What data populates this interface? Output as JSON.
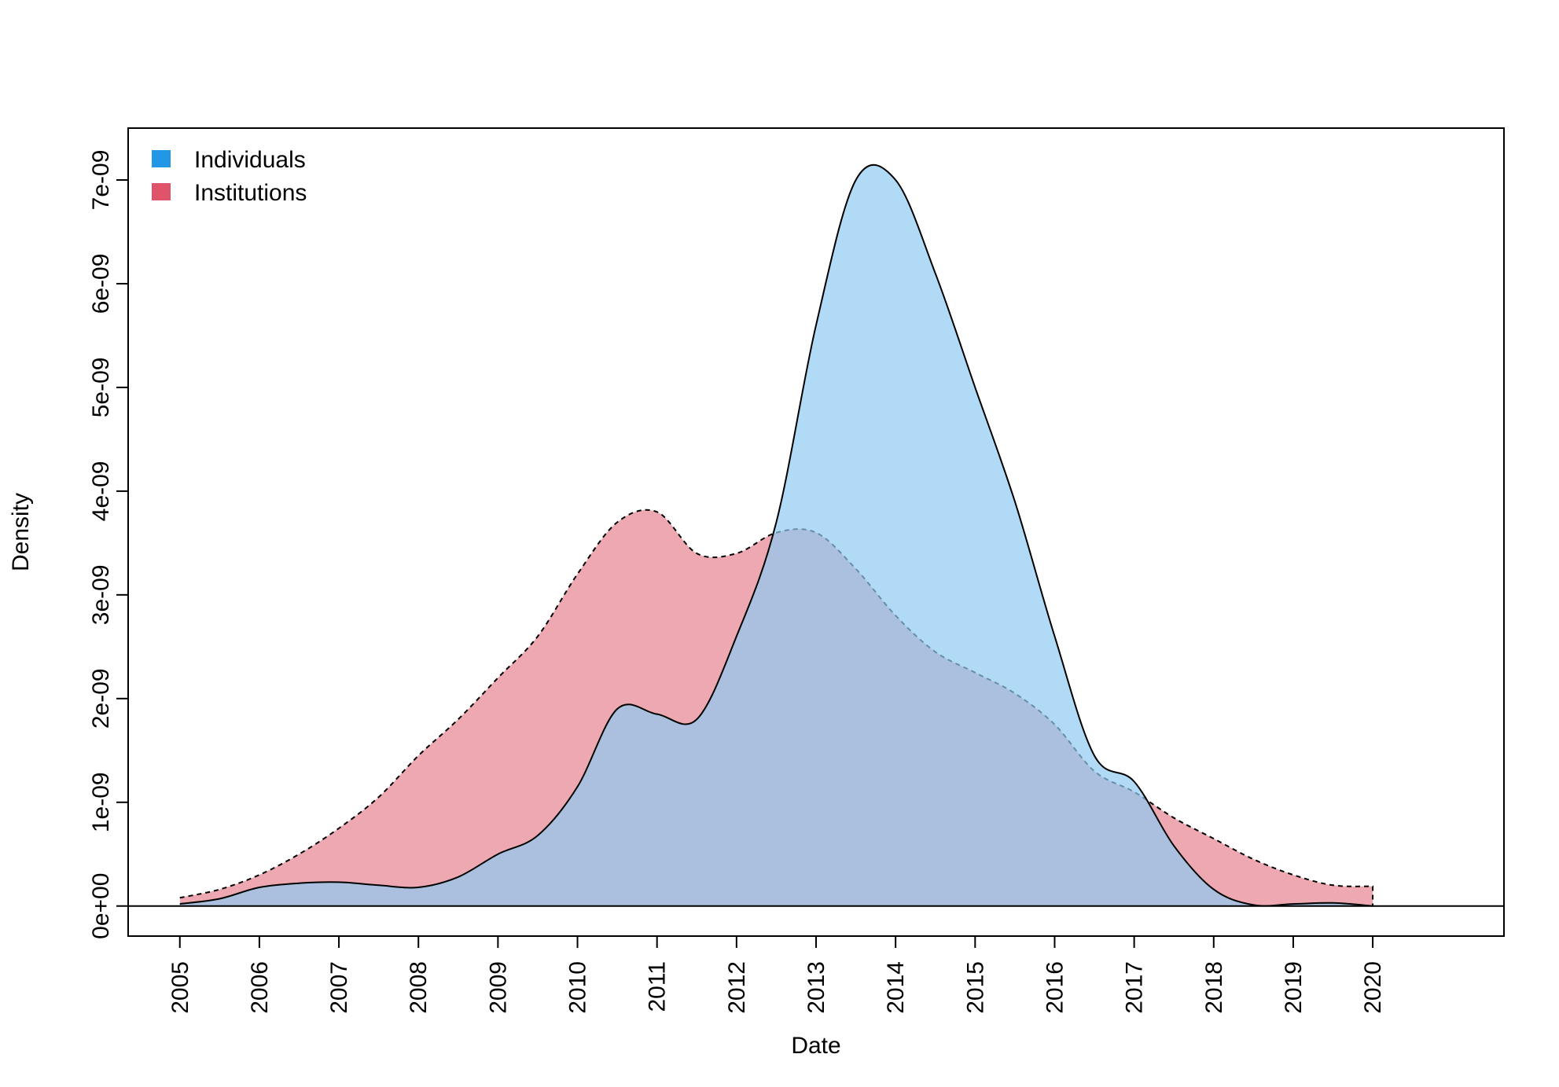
{
  "chart_data": {
    "type": "area",
    "title": "",
    "xlabel": "Date",
    "ylabel": "Density",
    "x_ticks": [
      "2005",
      "2006",
      "2007",
      "2008",
      "2009",
      "2010",
      "2011",
      "2012",
      "2013",
      "2014",
      "2015",
      "2016",
      "2017",
      "2018",
      "2019",
      "2020"
    ],
    "y_ticks": [
      "0e+00",
      "1e-09",
      "2e-09",
      "3e-09",
      "4e-09",
      "5e-09",
      "6e-09",
      "7e-09"
    ],
    "xlim": [
      2004.35,
      2021.65
    ],
    "ylim": [
      -2.9e-10,
      7.5e-09
    ],
    "legend_position": "top-left",
    "grid": false,
    "series": [
      {
        "name": "Individuals",
        "color": "#2297E6",
        "fill": "#8ECBF1",
        "line": "solid",
        "x": [
          2005.0,
          2005.5,
          2006.0,
          2006.5,
          2007.0,
          2007.5,
          2008.0,
          2008.5,
          2009.0,
          2009.5,
          2010.0,
          2010.5,
          2011.0,
          2011.5,
          2012.0,
          2012.5,
          2013.0,
          2013.5,
          2014.0,
          2014.5,
          2015.0,
          2015.5,
          2016.0,
          2016.5,
          2017.0,
          2017.5,
          2018.0,
          2018.5,
          2019.0,
          2019.5,
          2020.0
        ],
        "y": [
          2e-11,
          7e-11,
          1.8e-10,
          2.2e-10,
          2.3e-10,
          2e-10,
          1.8e-10,
          2.8e-10,
          5e-10,
          6.8e-10,
          1.15e-09,
          1.9e-09,
          1.85e-09,
          1.8e-09,
          2.6e-09,
          3.7e-09,
          5.6e-09,
          7e-09,
          7e-09,
          6.1e-09,
          5e-09,
          3.9e-09,
          2.6e-09,
          1.45e-09,
          1.2e-09,
          5.8e-10,
          1.6e-10,
          1e-11,
          2e-11,
          3e-11,
          0.0
        ]
      },
      {
        "name": "Institutions",
        "color": "#DF536B",
        "fill": "#EDA8B2",
        "line": "dashed",
        "x": [
          2005.0,
          2005.5,
          2006.0,
          2006.5,
          2007.0,
          2007.5,
          2008.0,
          2008.5,
          2009.0,
          2009.5,
          2010.0,
          2010.5,
          2011.0,
          2011.5,
          2012.0,
          2012.5,
          2013.0,
          2013.5,
          2014.0,
          2014.5,
          2015.0,
          2015.5,
          2016.0,
          2016.5,
          2017.0,
          2017.5,
          2018.0,
          2018.5,
          2019.0,
          2019.5,
          2020.0
        ],
        "y": [
          8e-11,
          1.6e-10,
          3e-10,
          5e-10,
          7.5e-10,
          1.05e-09,
          1.45e-09,
          1.8e-09,
          2.2e-09,
          2.6e-09,
          3.2e-09,
          3.7e-09,
          3.8e-09,
          3.4e-09,
          3.4e-09,
          3.6e-09,
          3.6e-09,
          3.25e-09,
          2.8e-09,
          2.45e-09,
          2.25e-09,
          2.05e-09,
          1.75e-09,
          1.3e-09,
          1.1e-09,
          8.5e-10,
          6.5e-10,
          4.5e-10,
          3e-10,
          2e-10,
          1.9e-10
        ]
      }
    ]
  }
}
